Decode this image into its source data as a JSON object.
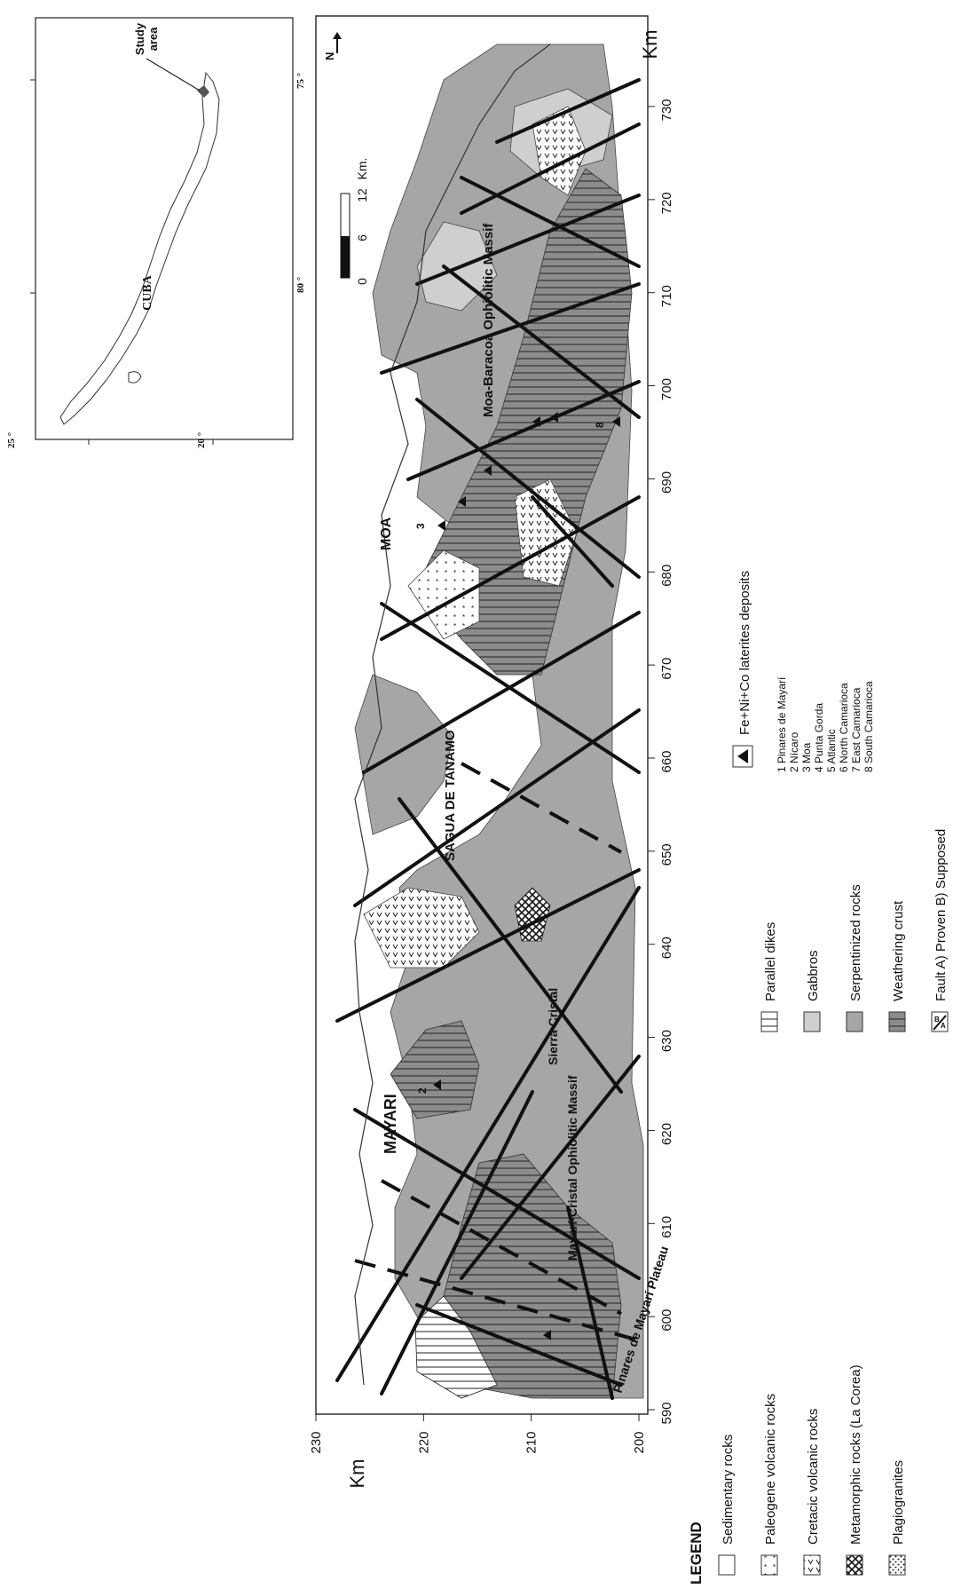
{
  "inset": {
    "country_label": "CUBA",
    "study_area_label_line1": "Study",
    "study_area_label_line2": "area",
    "lat_labels": [
      "25 °",
      "20 °"
    ],
    "lon_labels": [
      "80 °",
      "75 °"
    ]
  },
  "map": {
    "x_axis_unit": "Km",
    "y_axis_unit": "Km",
    "x_ticks": [
      "590",
      "600",
      "610",
      "620",
      "630",
      "640",
      "650",
      "660",
      "670",
      "680",
      "690",
      "700",
      "710",
      "720",
      "730"
    ],
    "y_ticks": [
      "230",
      "220",
      "210",
      "200"
    ],
    "north_symbol": "N",
    "scale_ticks": [
      "0",
      "6",
      "12"
    ],
    "scale_unit": "Km.",
    "region_labels": {
      "mayari": "MAYARI",
      "sagua": "SAGUA DE TANAMO",
      "moa": "MOA",
      "moa_baracoa": "Moa-Baracoa Ophiolitic Massif",
      "mayari_cristal": "Mayarí-Cristal Ophiolitic Massif",
      "sierra_cristal": "Sierra Cristal",
      "pinares": "Pinares de Mayarí Plateau"
    },
    "deposit_numbers": [
      "1",
      "2",
      "3",
      "4",
      "5",
      "6",
      "7",
      "8"
    ]
  },
  "legend": {
    "title": "LEGEND",
    "items": [
      {
        "label": "Sedimentary rocks"
      },
      {
        "label": "Paleogene volcanic rocks"
      },
      {
        "label": "Cretacic volcanic rocks"
      },
      {
        "label": "Metamorphic rocks (La Corea)"
      },
      {
        "label": "Plagiogranites"
      },
      {
        "label": "Parallel dikes"
      },
      {
        "label": "Gabbros"
      },
      {
        "label": "Serpentinized rocks"
      },
      {
        "label": "Weathering crust"
      },
      {
        "label": "Fault A) Proven  B) Supposed"
      }
    ],
    "fault_symbol_a": "A",
    "fault_symbol_b": "B",
    "deposits_title": "Fe+Ni+Co laterites deposits",
    "deposits": [
      "1  Pinares de Mayarí",
      "2  Nícaro",
      "3  Moa",
      "4  Punta Gorda",
      "5  Atlantic",
      "6  North Camarioca",
      "7  East Camarioca",
      "8  South Camarioca"
    ]
  },
  "colors": {
    "serpentinized": "#a6a6a6",
    "gabbros": "#cfcfcf",
    "weathering": "#8c8c8c",
    "line": "#111111"
  }
}
